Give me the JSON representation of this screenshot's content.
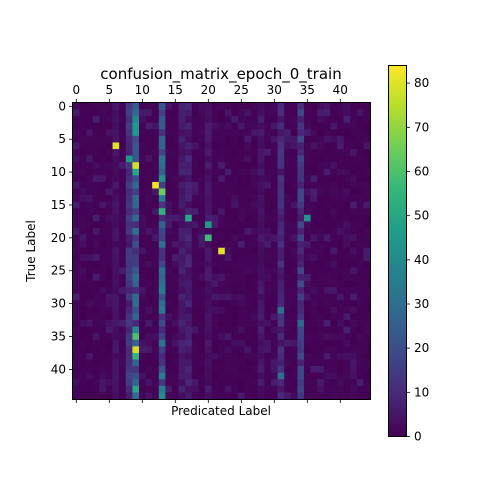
{
  "chart_data": {
    "type": "heatmap",
    "title": "confusion_matrix_epoch_0_train",
    "xlabel": "Predicated Label",
    "ylabel": "True Label",
    "n_classes": 45,
    "x_ticks": [
      0,
      5,
      10,
      15,
      20,
      25,
      30,
      35,
      40
    ],
    "y_ticks": [
      0,
      5,
      10,
      15,
      20,
      25,
      30,
      35,
      40
    ],
    "colorbar_ticks": [
      0,
      10,
      20,
      30,
      40,
      50,
      60,
      70,
      80
    ],
    "colorbar_range": [
      0,
      84
    ],
    "colormap": "viridis",
    "colormap_stops": [
      "#440154",
      "#482878",
      "#3e4989",
      "#31688e",
      "#26828e",
      "#1f9e89",
      "#35b779",
      "#6ece58",
      "#b5de2b",
      "#fde725"
    ],
    "dominant_columns": [
      {
        "col": 9,
        "typical_value": 22
      },
      {
        "col": 13,
        "typical_value": 25
      },
      {
        "col": 8,
        "typical_value": 12
      },
      {
        "col": 34,
        "typical_value": 14
      },
      {
        "col": 31,
        "typical_value": 10
      },
      {
        "col": 17,
        "typical_value": 7
      },
      {
        "col": 16,
        "typical_value": 6
      },
      {
        "col": 20,
        "typical_value": 5
      },
      {
        "col": 28,
        "typical_value": 5
      },
      {
        "col": 6,
        "typical_value": 4
      }
    ],
    "highlighted_cells": [
      {
        "row": 6,
        "col": 6,
        "value": 80
      },
      {
        "row": 9,
        "col": 9,
        "value": 78
      },
      {
        "row": 12,
        "col": 12,
        "value": 82
      },
      {
        "row": 13,
        "col": 13,
        "value": 65
      },
      {
        "row": 16,
        "col": 13,
        "value": 55
      },
      {
        "row": 17,
        "col": 17,
        "value": 50
      },
      {
        "row": 17,
        "col": 35,
        "value": 42
      },
      {
        "row": 18,
        "col": 20,
        "value": 45
      },
      {
        "row": 20,
        "col": 20,
        "value": 58
      },
      {
        "row": 22,
        "col": 22,
        "value": 80
      },
      {
        "row": 37,
        "col": 9,
        "value": 78
      },
      {
        "row": 35,
        "col": 9,
        "value": 60
      },
      {
        "row": 38,
        "col": 9,
        "value": 55
      },
      {
        "row": 43,
        "col": 9,
        "value": 50
      },
      {
        "row": 44,
        "col": 13,
        "value": 40
      },
      {
        "row": 3,
        "col": 9,
        "value": 45
      },
      {
        "row": 8,
        "col": 8,
        "value": 45
      },
      {
        "row": 10,
        "col": 9,
        "value": 50
      },
      {
        "row": 11,
        "col": 13,
        "value": 42
      },
      {
        "row": 2,
        "col": 9,
        "value": 40
      },
      {
        "row": 4,
        "col": 9,
        "value": 45
      },
      {
        "row": 14,
        "col": 13,
        "value": 35
      },
      {
        "row": 28,
        "col": 13,
        "value": 35
      },
      {
        "row": 34,
        "col": 9,
        "value": 40
      },
      {
        "row": 21,
        "col": 13,
        "value": 30
      },
      {
        "row": 25,
        "col": 13,
        "value": 30
      },
      {
        "row": 31,
        "col": 31,
        "value": 30
      },
      {
        "row": 33,
        "col": 34,
        "value": 28
      },
      {
        "row": 41,
        "col": 31,
        "value": 30
      }
    ]
  }
}
